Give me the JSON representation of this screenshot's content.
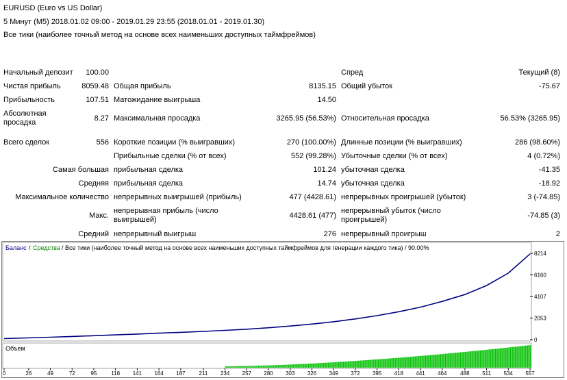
{
  "header": {
    "symbol": "EURUSD (Euro vs US Dollar)",
    "period": "5 Минут (M5) 2018.01.02 09:00 - 2019.01.29 23:55 (2018.01.01 - 2019.01.30)",
    "model": "Все тики (наиболее точный метод на основе всех наименьших доступных таймфреймов)"
  },
  "stats": {
    "initial_deposit_label": "Начальный депозит",
    "initial_deposit": "100.00",
    "spread_label": "Спред",
    "spread": "Текущий (8)",
    "net_profit_label": "Чистая прибыль",
    "net_profit": "8059.48",
    "gross_profit_label": "Общая прибыль",
    "gross_profit": "8135.15",
    "gross_loss_label": "Общий убыток",
    "gross_loss": "-75.67",
    "profit_factor_label": "Прибыльность",
    "profit_factor": "107.51",
    "expected_payoff_label": "Матожидание выигрыша",
    "expected_payoff": "14.50",
    "abs_drawdown_label": "Абсолютная просадка",
    "abs_drawdown": "8.27",
    "max_drawdown_label": "Максимальная просадка",
    "max_drawdown": "3265.95 (56.53%)",
    "rel_drawdown_label": "Относительная просадка",
    "rel_drawdown": "56.53% (3265.95)",
    "total_trades_label": "Всего сделок",
    "total_trades": "556",
    "short_label": "Короткие позиции (% выигравших)",
    "short": "270 (100.00%)",
    "long_label": "Длинные позиции (% выигравших)",
    "long": "286 (98.60%)",
    "profit_trades_label": "Прибыльные сделки (% от всех)",
    "profit_trades": "552 (99.28%)",
    "loss_trades_label": "Убыточные сделки (% от всех)",
    "loss_trades": "4 (0.72%)",
    "largest_label": "Самая большая",
    "largest_profit_label": "прибыльная сделка",
    "largest_profit": "101.24",
    "largest_loss_label": "убыточная сделка",
    "largest_loss": "-41.35",
    "average_label": "Средняя",
    "average_profit_label": "прибыльная сделка",
    "average_profit": "14.74",
    "average_loss_label": "убыточная сделка",
    "average_loss": "-18.92",
    "max_count_label": "Максимальное количество",
    "max_consec_wins_label": "непрерывных выигрышей (прибыль)",
    "max_consec_wins": "477 (4428.61)",
    "max_consec_losses_label": "непрерывных проигрышей (убыток)",
    "max_consec_losses": "3 (-74.85)",
    "max_label": "Макс.",
    "max_consec_profit_label": "непрерывная прибыль (число выигрышей)",
    "max_consec_profit": "4428.61 (477)",
    "max_consec_loss_label": "непрерывный убыток (число проигрышей)",
    "max_consec_loss": "-74.85 (3)",
    "avg_label": "Средний",
    "avg_consec_wins_label": "непрерывный выигрыш",
    "avg_consec_wins": "276",
    "avg_consec_losses_label": "непрерывный проигрыш",
    "avg_consec_losses": "2"
  },
  "chart_data": {
    "type": "line",
    "legend_balance": "Баланс",
    "legend_sep": " / ",
    "legend_equity": "Средства",
    "legend_rest": " / Все тики (наиболее точный метод на основе всех наименьших доступных таймфреймов для генерации каждого тика) / 90.00%",
    "volume_label": "Объем",
    "y_ticks": [
      0,
      2053,
      4107,
      6160,
      8214
    ],
    "ylim": [
      0,
      8214
    ],
    "x_ticks": [
      0,
      26,
      49,
      72,
      95,
      118,
      141,
      164,
      187,
      211,
      234,
      257,
      280,
      303,
      326,
      349,
      372,
      395,
      418,
      441,
      464,
      488,
      511,
      534,
      557
    ],
    "xlim": [
      0,
      557
    ],
    "colors": {
      "balance": "#000080",
      "equity": "#008000",
      "volume": "#00c000"
    },
    "series": [
      {
        "name": "Баланс",
        "x": [
          0,
          26,
          49,
          72,
          95,
          118,
          141,
          164,
          187,
          211,
          234,
          257,
          280,
          303,
          326,
          349,
          372,
          395,
          418,
          441,
          464,
          488,
          511,
          534,
          557
        ],
        "values": [
          100,
          160,
          230,
          300,
          370,
          450,
          530,
          610,
          690,
          780,
          880,
          990,
          1130,
          1290,
          1480,
          1700,
          1970,
          2280,
          2650,
          3090,
          3640,
          4290,
          5150,
          6330,
          8159
        ]
      }
    ],
    "volume_start_x": 234
  }
}
